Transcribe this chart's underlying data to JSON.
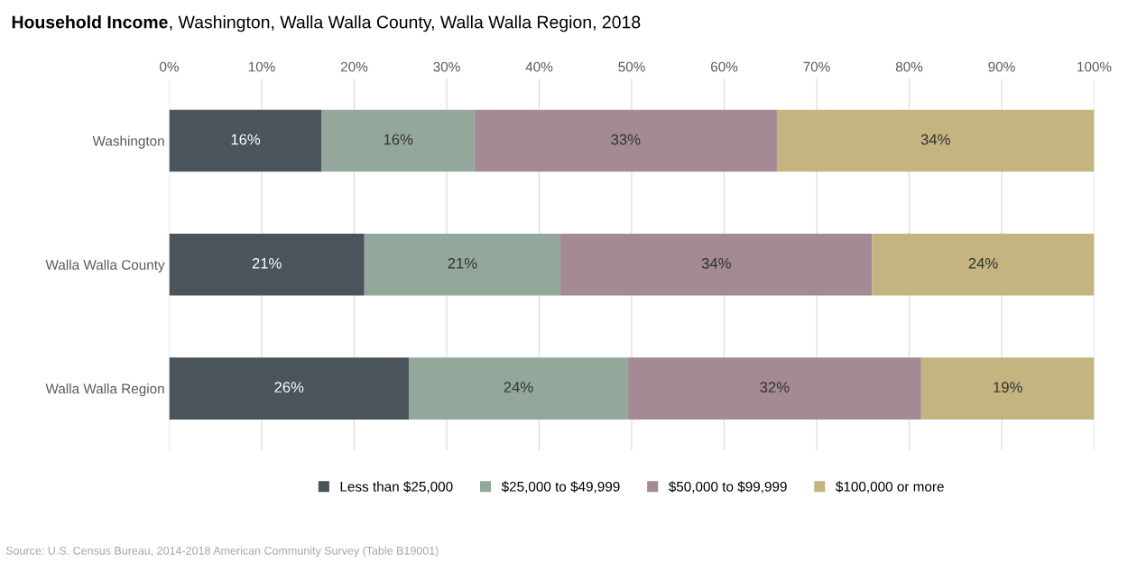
{
  "chart_data": {
    "type": "bar",
    "orientation": "horizontal",
    "stacked": true,
    "title": "Household Income, Washington, Walla Walla County, Walla Walla Region, 2018",
    "categories": [
      "Washington",
      "Walla Walla County",
      "Walla Walla Region"
    ],
    "series": [
      {
        "name": "Less than $25,000",
        "color": "#4a545a",
        "values": [
          16.5,
          21.1,
          25.9
        ],
        "value_labels": [
          "16%",
          "21%",
          "26%"
        ]
      },
      {
        "name": "$25,000 to $49,999",
        "color": "#93a89a",
        "values": [
          16.5,
          21.2,
          23.7
        ],
        "value_labels": [
          "16%",
          "21%",
          "24%"
        ]
      },
      {
        "name": "$50,000 to $99,999",
        "color": "#a38a95",
        "values": [
          32.7,
          33.7,
          31.7
        ],
        "value_labels": [
          "33%",
          "34%",
          "32%"
        ]
      },
      {
        "name": "$100,000 or more",
        "color": "#c4b47f",
        "values": [
          34.3,
          24.0,
          18.7
        ],
        "value_labels": [
          "34%",
          "24%",
          "19%"
        ]
      }
    ],
    "xlim": [
      0,
      100
    ],
    "xticks": [
      {
        "value": 0,
        "label": "0%"
      },
      {
        "value": 10,
        "label": "10%"
      },
      {
        "value": 20,
        "label": "20%"
      },
      {
        "value": 30,
        "label": "30%"
      },
      {
        "value": 40,
        "label": "40%"
      },
      {
        "value": 50,
        "label": "50%"
      },
      {
        "value": 60,
        "label": "60%"
      },
      {
        "value": 70,
        "label": "70%"
      },
      {
        "value": 80,
        "label": "80%"
      },
      {
        "value": 90,
        "label": "90%"
      },
      {
        "value": 100,
        "label": "100%"
      }
    ],
    "grid": "x",
    "legend": "bottom",
    "annotations": [
      "Source: U.S. Census Bureau, 2014-2018 American Community Survey (Table B19001)"
    ]
  }
}
